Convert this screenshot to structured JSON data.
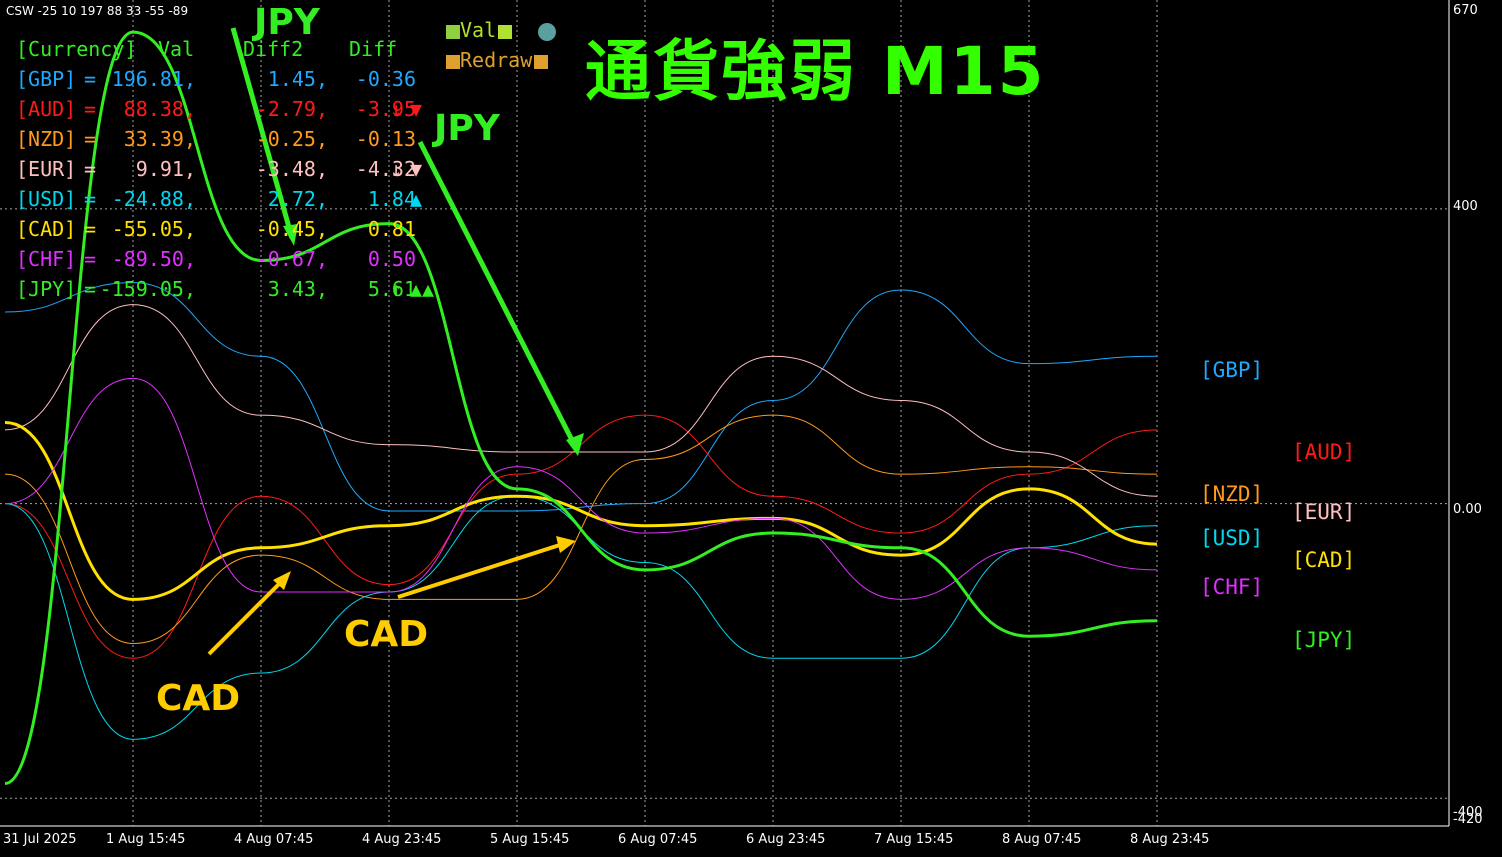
{
  "header": {
    "indicator": "CSW -25 10 197 88 33 -55 -89"
  },
  "title": "通貨強弱 M15",
  "legend": {
    "val_label": "Val",
    "redraw_label": "Redraw"
  },
  "table": {
    "columns": [
      "[Currency]",
      "Val",
      "Diff2",
      "Diff"
    ],
    "rows": [
      {
        "currency": "[GBP]",
        "eq": "=",
        "val": "196.81,",
        "diff2": "1.45,",
        "diff": "-0.36",
        "arrow": "",
        "markers": "",
        "color": "#1fa8ff"
      },
      {
        "currency": "[AUD]",
        "eq": "=",
        "val": "88.38,",
        "diff2": "-2.79,",
        "diff": "-3.95",
        "arrow": "↓",
        "markers": "▼",
        "color": "#ff1a1a"
      },
      {
        "currency": "[NZD]",
        "eq": "=",
        "val": "33.39,",
        "diff2": "-0.25,",
        "diff": "-0.13",
        "arrow": "",
        "markers": "",
        "color": "#ff9a1a"
      },
      {
        "currency": "[EUR]",
        "eq": "=",
        "val": "9.91,",
        "diff2": "-3.48,",
        "diff": "-4.32",
        "arrow": "↓",
        "markers": "▼",
        "color": "#ffc0c0"
      },
      {
        "currency": "[USD]",
        "eq": "=",
        "val": "-24.88,",
        "diff2": "2.72,",
        "diff": "1.84",
        "arrow": "",
        "markers": "▲",
        "color": "#00d8f0"
      },
      {
        "currency": "[CAD]",
        "eq": "=",
        "val": "-55.05,",
        "diff2": "-0.45,",
        "diff": "0.81",
        "arrow": "",
        "markers": "",
        "color": "#ffe000"
      },
      {
        "currency": "[CHF]",
        "eq": "=",
        "val": "-89.50,",
        "diff2": "-0.67,",
        "diff": "0.50",
        "arrow": "",
        "markers": "",
        "color": "#e030ff"
      },
      {
        "currency": "[JPY]",
        "eq": "=",
        "val": "-159.05,",
        "diff2": "3.43,",
        "diff": "5.61",
        "arrow": "↑",
        "markers": "▲▲",
        "color": "#33ee22"
      }
    ]
  },
  "side_labels": [
    {
      "text": "[GBP]",
      "color": "#1fa8ff"
    },
    {
      "text": "[AUD]",
      "color": "#ff1a1a"
    },
    {
      "text": "[NZD]",
      "color": "#ff9a1a"
    },
    {
      "text": "[EUR]",
      "color": "#ffc0c0"
    },
    {
      "text": "[USD]",
      "color": "#00d8f0"
    },
    {
      "text": "[CAD]",
      "color": "#ffe000"
    },
    {
      "text": "[CHF]",
      "color": "#e030ff"
    },
    {
      "text": "[JPY]",
      "color": "#33ee22"
    }
  ],
  "y_axis": {
    "labels": [
      "670",
      "400",
      "0.00",
      "-400",
      "-420"
    ]
  },
  "x_axis": {
    "labels": [
      "31 Jul 2025",
      "1 Aug 15:45",
      "4 Aug 07:45",
      "4 Aug 23:45",
      "5 Aug 15:45",
      "6 Aug 07:45",
      "6 Aug 23:45",
      "7 Aug 15:45",
      "8 Aug 07:45",
      "8 Aug 23:45"
    ]
  },
  "annotations": {
    "jpy_1": "JPY",
    "jpy_2": "JPY",
    "cad_1": "CAD",
    "cad_2": "CAD"
  },
  "colors": {
    "background": "#000000",
    "grid": "#ffffff",
    "title": "#33ff00",
    "cad_annotation": "#ffcc00",
    "jpy_annotation": "#33ee22"
  },
  "chart_data": {
    "type": "line",
    "ylim": [
      -420,
      670
    ],
    "x": [
      "31 Jul 2025",
      "1 Aug 15:45",
      "4 Aug 07:45",
      "4 Aug 23:45",
      "5 Aug 15:45",
      "6 Aug 07:45",
      "6 Aug 23:45",
      "7 Aug 15:45",
      "8 Aug 07:45",
      "8 Aug 23:45"
    ],
    "series": [
      {
        "name": "[GBP]",
        "color": "#1fa8ff",
        "values": [
          260,
          300,
          200,
          -10,
          -10,
          0,
          140,
          290,
          190,
          200
        ]
      },
      {
        "name": "[AUD]",
        "color": "#ff1a1a",
        "values": [
          0,
          -210,
          10,
          -110,
          40,
          120,
          10,
          -40,
          40,
          100
        ]
      },
      {
        "name": "[NZD]",
        "color": "#ff9a1a",
        "values": [
          40,
          -190,
          -70,
          -130,
          -130,
          60,
          120,
          40,
          50,
          40
        ]
      },
      {
        "name": "[EUR]",
        "color": "#ffc0c0",
        "values": [
          100,
          270,
          120,
          80,
          70,
          70,
          200,
          140,
          70,
          10
        ]
      },
      {
        "name": "[USD]",
        "color": "#00d8f0",
        "values": [
          0,
          -320,
          -230,
          -120,
          10,
          -80,
          -210,
          -210,
          -60,
          -30
        ]
      },
      {
        "name": "[CAD]",
        "color": "#ffe000",
        "values": [
          110,
          -130,
          -60,
          -30,
          10,
          -30,
          -20,
          -70,
          20,
          -55
        ]
      },
      {
        "name": "[CHF]",
        "color": "#e030ff",
        "values": [
          0,
          170,
          -120,
          -120,
          50,
          -40,
          -20,
          -130,
          -60,
          -90
        ]
      },
      {
        "name": "[JPY]",
        "color": "#33ee22",
        "values": [
          -380,
          640,
          330,
          380,
          20,
          -90,
          -40,
          -60,
          -180,
          -159
        ]
      }
    ]
  }
}
